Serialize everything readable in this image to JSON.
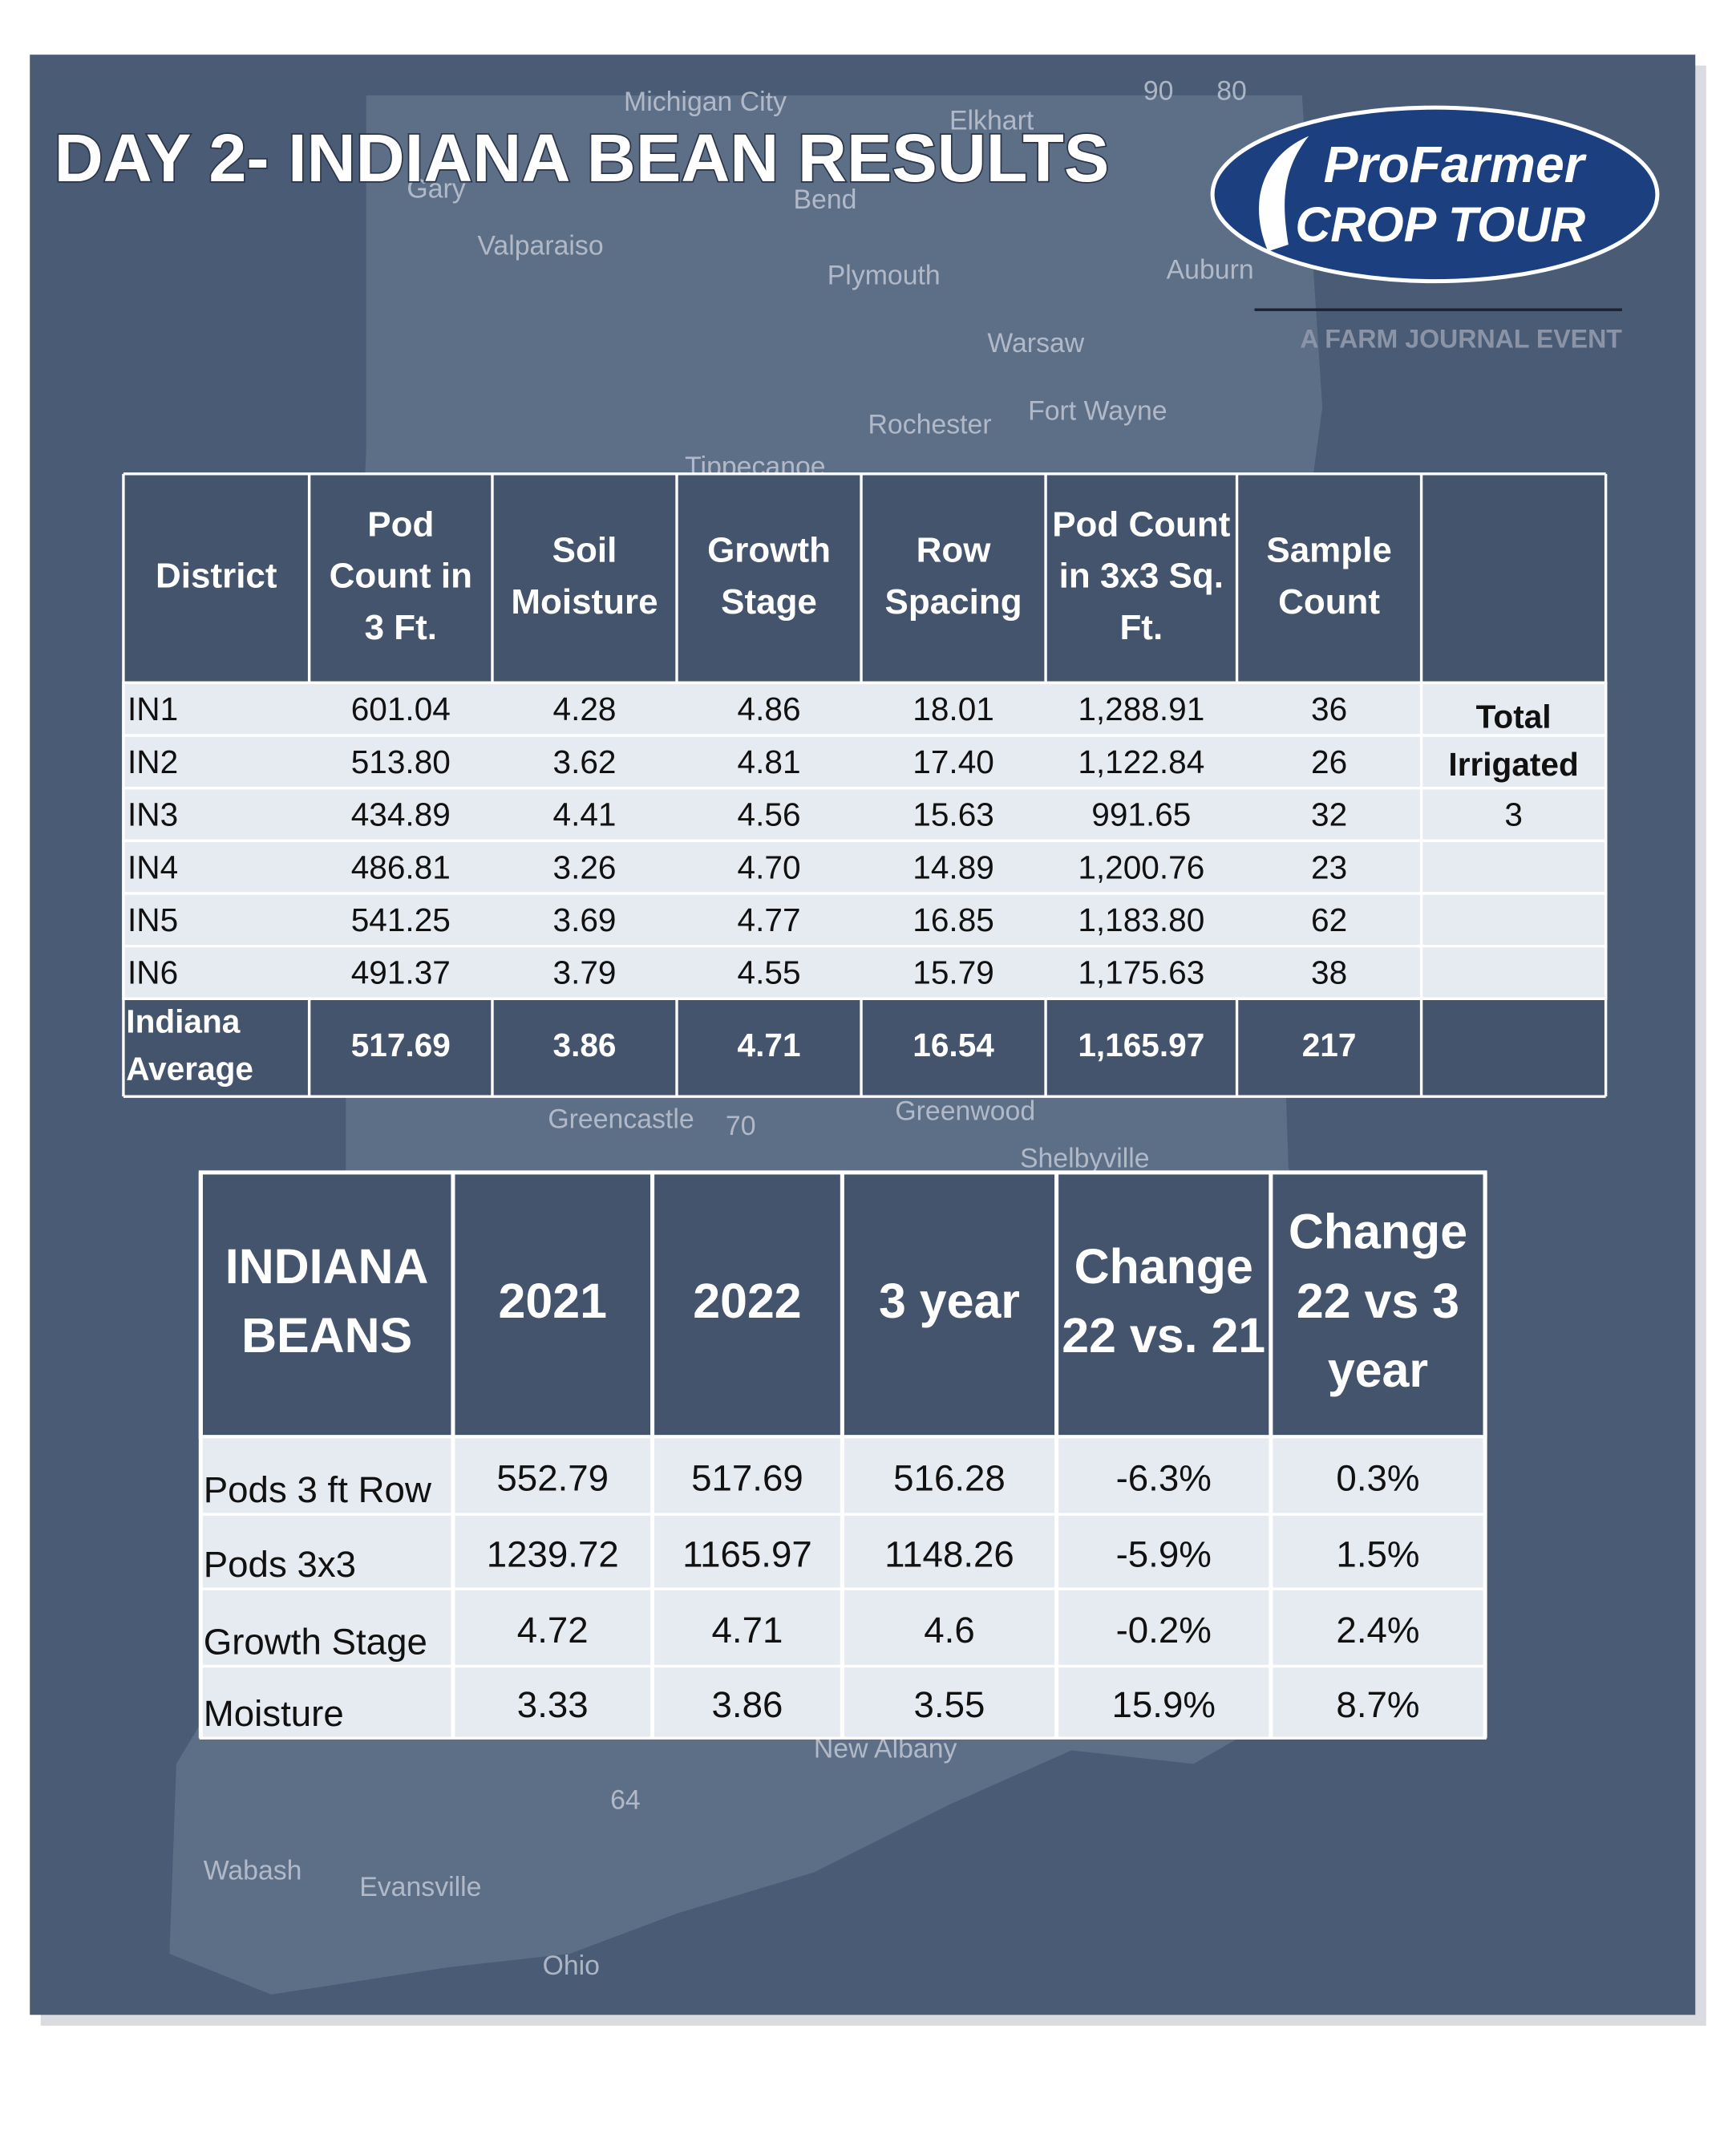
{
  "title": "DAY 2- INDIANA BEAN RESULTS",
  "logo": {
    "line1": "ProFarmer",
    "line2": "CROP TOUR",
    "tagline": "A FARM JOURNAL EVENT"
  },
  "map_labels": [
    "Michigan City",
    "Elkhart",
    "Gary",
    "Valparaiso",
    "Bend",
    "Plymouth",
    "Auburn",
    "Warsaw",
    "Fort Wayne",
    "Rochester",
    "Tippecanoe",
    "Greencastle",
    "Greenwood",
    "Shelbyville",
    "New Albany",
    "Evansville",
    "Wabash",
    "Ohio",
    "90",
    "80",
    "70",
    "64"
  ],
  "district_table": {
    "header": [
      [
        "District"
      ],
      [
        "Pod",
        "Count in",
        "3 Ft."
      ],
      [
        "Soil",
        "Moisture"
      ],
      [
        "Growth",
        "Stage"
      ],
      [
        "Row",
        "Spacing"
      ],
      [
        "Pod Count",
        "in 3x3 Sq.",
        "Ft."
      ],
      [
        "Sample",
        "Count"
      ]
    ],
    "rows": [
      [
        "IN1",
        "601.04",
        "4.28",
        "4.86",
        "18.01",
        "1,288.91",
        "36"
      ],
      [
        "IN2",
        "513.80",
        "3.62",
        "4.81",
        "17.40",
        "1,122.84",
        "26"
      ],
      [
        "IN3",
        "434.89",
        "4.41",
        "4.56",
        "15.63",
        "991.65",
        "32"
      ],
      [
        "IN4",
        "486.81",
        "3.26",
        "4.70",
        "14.89",
        "1,200.76",
        "23"
      ],
      [
        "IN5",
        "541.25",
        "3.69",
        "4.77",
        "16.85",
        "1,183.80",
        "62"
      ],
      [
        "IN6",
        "491.37",
        "3.79",
        "4.55",
        "15.79",
        "1,175.63",
        "38"
      ]
    ],
    "average": [
      [
        "Indiana",
        "Average"
      ],
      "517.69",
      "3.86",
      "4.71",
      "16.54",
      "1,165.97",
      "217"
    ],
    "irrigated": {
      "label": [
        "Total",
        "Irrigated"
      ],
      "value": "3"
    }
  },
  "comparison_table": {
    "header": [
      [
        "INDIANA",
        "BEANS"
      ],
      [
        "2021"
      ],
      [
        "2022"
      ],
      [
        "3 year"
      ],
      [
        "Change",
        "22 vs. 21"
      ],
      [
        "Change",
        "22 vs 3",
        "year"
      ]
    ],
    "rows": [
      [
        "Pods 3 ft Row",
        "552.79",
        "517.69",
        "516.28",
        "-6.3%",
        "0.3%"
      ],
      [
        "Pods 3x3",
        "1239.72",
        "1165.97",
        "1148.26",
        "-5.9%",
        "1.5%"
      ],
      [
        "Growth Stage",
        "4.72",
        "4.71",
        "4.6",
        "-0.2%",
        "2.4%"
      ],
      [
        "Moisture",
        "3.33",
        "3.86",
        "3.55",
        "15.9%",
        "8.7%"
      ]
    ]
  }
}
